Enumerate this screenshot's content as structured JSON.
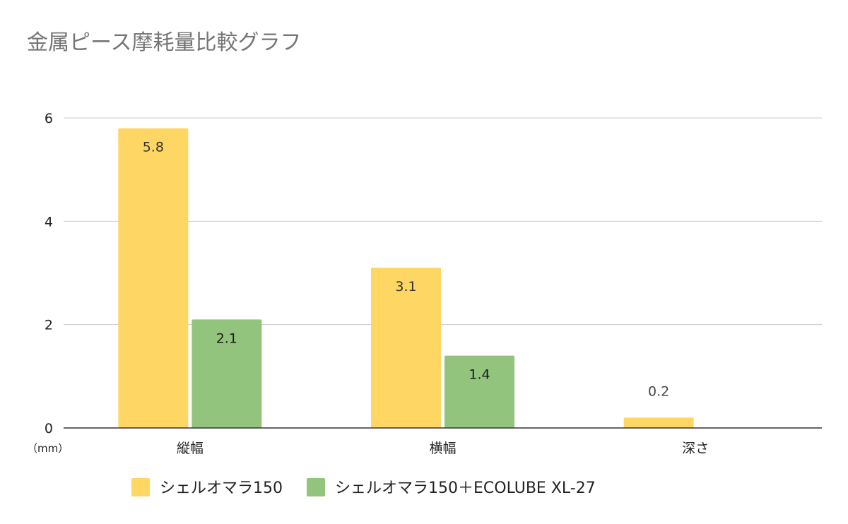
{
  "chart_data": {
    "type": "bar",
    "title": "金属ピース摩耗量比較グラフ",
    "unit_label": "（mm）",
    "categories": [
      "縦幅",
      "横幅",
      "深さ"
    ],
    "ylim": [
      0,
      6
    ],
    "yticks": [
      0,
      2,
      4,
      6
    ],
    "grid": true,
    "legend_position": "bottom",
    "series": [
      {
        "name": "シェルオマラ150",
        "color": "#FDD663",
        "values": [
          5.8,
          3.1,
          0.2
        ]
      },
      {
        "name": "シェルオマラ150＋ECOLUBE XL-27",
        "color": "#93C47D",
        "values": [
          2.1,
          1.4,
          null
        ]
      }
    ],
    "data_labels": [
      [
        "5.8",
        "3.1",
        "0.2"
      ],
      [
        "2.1",
        "1.4",
        ""
      ]
    ]
  }
}
